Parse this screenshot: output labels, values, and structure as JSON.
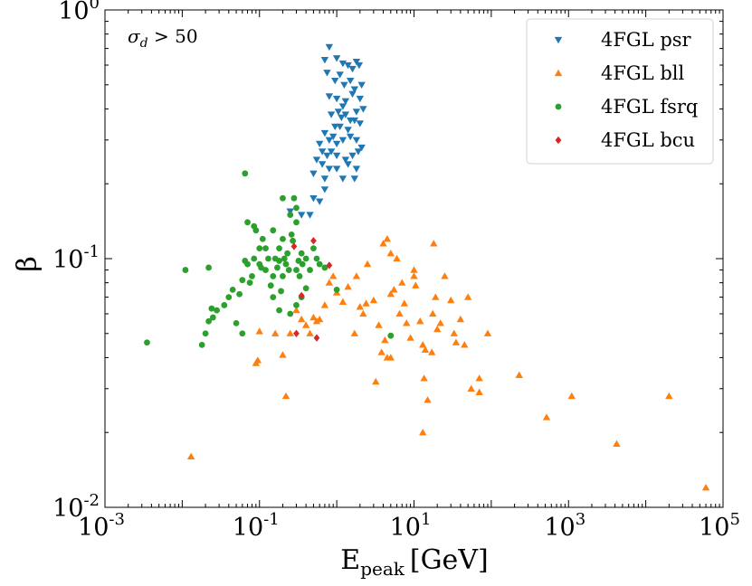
{
  "chart_data": {
    "type": "scatter",
    "title": "",
    "xlabel": "E_peak [GeV]",
    "xlabel_main": "E",
    "xlabel_sub": "peak",
    "xlabel_unit": "[GeV]",
    "ylabel": "β",
    "xscale": "log",
    "yscale": "log",
    "xlim": [
      0.001,
      100000
    ],
    "ylim": [
      0.01,
      1
    ],
    "legend_position": "top-right",
    "annotation": {
      "text": "σd > 50",
      "symbol": "σ",
      "sub": "d",
      "rest": " > 50"
    },
    "x_ticks": [
      {
        "value": 0.001,
        "base": "10",
        "exp": "-3"
      },
      {
        "value": 0.1,
        "base": "10",
        "exp": "-1"
      },
      {
        "value": 10,
        "base": "10",
        "exp": "1"
      },
      {
        "value": 1000,
        "base": "10",
        "exp": "3"
      },
      {
        "value": 100000,
        "base": "10",
        "exp": "5"
      }
    ],
    "y_ticks": [
      {
        "value": 0.01,
        "base": "10",
        "exp": "-2"
      },
      {
        "value": 0.1,
        "base": "10",
        "exp": "-1"
      },
      {
        "value": 1,
        "base": "10",
        "exp": "0"
      }
    ],
    "series": [
      {
        "name": "4FGL psr",
        "color": "#1f77b4",
        "marker": "triangle-down",
        "points": [
          [
            0.8,
            0.71
          ],
          [
            0.7,
            0.63
          ],
          [
            1.0,
            0.64
          ],
          [
            1.2,
            0.61
          ],
          [
            1.1,
            0.55
          ],
          [
            1.4,
            0.6
          ],
          [
            1.6,
            0.58
          ],
          [
            1.8,
            0.62
          ],
          [
            1.95,
            0.6
          ],
          [
            0.75,
            0.56
          ],
          [
            0.95,
            0.52
          ],
          [
            1.25,
            0.5
          ],
          [
            1.5,
            0.52
          ],
          [
            1.7,
            0.48
          ],
          [
            2.1,
            0.5
          ],
          [
            0.8,
            0.45
          ],
          [
            1.0,
            0.44
          ],
          [
            1.3,
            0.43
          ],
          [
            1.6,
            0.46
          ],
          [
            2.0,
            0.44
          ],
          [
            1.2,
            0.41
          ],
          [
            1.05,
            0.39
          ],
          [
            1.15,
            0.37
          ],
          [
            1.3,
            0.38
          ],
          [
            1.5,
            0.36
          ],
          [
            1.8,
            0.39
          ],
          [
            2.2,
            0.4
          ],
          [
            0.85,
            0.38
          ],
          [
            0.95,
            0.34
          ],
          [
            1.1,
            0.34
          ],
          [
            1.4,
            0.33
          ],
          [
            1.7,
            0.36
          ],
          [
            2.0,
            0.35
          ],
          [
            0.7,
            0.32
          ],
          [
            0.8,
            0.3
          ],
          [
            0.9,
            0.31
          ],
          [
            1.0,
            0.29
          ],
          [
            1.2,
            0.3
          ],
          [
            1.5,
            0.31
          ],
          [
            1.8,
            0.3
          ],
          [
            2.1,
            0.28
          ],
          [
            0.6,
            0.29
          ],
          [
            0.65,
            0.27
          ],
          [
            0.75,
            0.26
          ],
          [
            0.85,
            0.27
          ],
          [
            1.0,
            0.26
          ],
          [
            1.3,
            0.25
          ],
          [
            1.6,
            0.26
          ],
          [
            1.9,
            0.27
          ],
          [
            0.55,
            0.25
          ],
          [
            0.65,
            0.24
          ],
          [
            0.8,
            0.23
          ],
          [
            1.0,
            0.23
          ],
          [
            1.4,
            0.24
          ],
          [
            1.8,
            0.23
          ],
          [
            0.5,
            0.22
          ],
          [
            0.7,
            0.21
          ],
          [
            1.2,
            0.21
          ],
          [
            1.7,
            0.21
          ],
          [
            0.7,
            0.19
          ],
          [
            0.5,
            0.175
          ],
          [
            0.6,
            0.17
          ],
          [
            0.45,
            0.15
          ],
          [
            0.35,
            0.15
          ],
          [
            0.25,
            0.155
          ]
        ]
      },
      {
        "name": "4FGL bll",
        "color": "#ff7f0e",
        "marker": "triangle-up",
        "points": [
          [
            0.013,
            0.016
          ],
          [
            0.09,
            0.038
          ],
          [
            0.095,
            0.039
          ],
          [
            0.1,
            0.051
          ],
          [
            0.16,
            0.05
          ],
          [
            0.2,
            0.041
          ],
          [
            0.22,
            0.028
          ],
          [
            0.25,
            0.05
          ],
          [
            0.3,
            0.062
          ],
          [
            0.35,
            0.057
          ],
          [
            0.4,
            0.054
          ],
          [
            0.45,
            0.05
          ],
          [
            0.5,
            0.058
          ],
          [
            0.55,
            0.056
          ],
          [
            0.6,
            0.057
          ],
          [
            0.7,
            0.065
          ],
          [
            0.8,
            0.08
          ],
          [
            0.9,
            0.085
          ],
          [
            1.0,
            0.073
          ],
          [
            1.2,
            0.067
          ],
          [
            1.4,
            0.077
          ],
          [
            1.7,
            0.05
          ],
          [
            2.0,
            0.064
          ],
          [
            2.2,
            0.06
          ],
          [
            2.4,
            0.066
          ],
          [
            1.8,
            0.085
          ],
          [
            2.5,
            0.095
          ],
          [
            3.0,
            0.068
          ],
          [
            3.5,
            0.054
          ],
          [
            3.2,
            0.032
          ],
          [
            3.8,
            0.042
          ],
          [
            4.2,
            0.047
          ],
          [
            4.5,
            0.04
          ],
          [
            5.0,
            0.04
          ],
          [
            4.0,
            0.115
          ],
          [
            4.5,
            0.12
          ],
          [
            5.0,
            0.105
          ],
          [
            6.0,
            0.1
          ],
          [
            5.5,
            0.075
          ],
          [
            7.0,
            0.08
          ],
          [
            5.0,
            0.072
          ],
          [
            6.5,
            0.06
          ],
          [
            7.5,
            0.066
          ],
          [
            8.0,
            0.055
          ],
          [
            9.0,
            0.048
          ],
          [
            10.0,
            0.09
          ],
          [
            10.0,
            0.085
          ],
          [
            10.5,
            0.078
          ],
          [
            12.0,
            0.056
          ],
          [
            13.0,
            0.045
          ],
          [
            14.0,
            0.043
          ],
          [
            13.5,
            0.033
          ],
          [
            13.0,
            0.02
          ],
          [
            15.0,
            0.027
          ],
          [
            17.0,
            0.042
          ],
          [
            18.0,
            0.115
          ],
          [
            19.0,
            0.07
          ],
          [
            17.5,
            0.06
          ],
          [
            20.0,
            0.052
          ],
          [
            22.0,
            0.055
          ],
          [
            25.0,
            0.085
          ],
          [
            30.0,
            0.068
          ],
          [
            33.0,
            0.05
          ],
          [
            35.0,
            0.046
          ],
          [
            40.0,
            0.057
          ],
          [
            45.0,
            0.045
          ],
          [
            50.0,
            0.07
          ],
          [
            55.0,
            0.03
          ],
          [
            70.0,
            0.029
          ],
          [
            70.0,
            0.033
          ],
          [
            90.0,
            0.05
          ],
          [
            230.0,
            0.034
          ],
          [
            520.0,
            0.023
          ],
          [
            1100.0,
            0.028
          ],
          [
            4200.0,
            0.018
          ],
          [
            20000.0,
            0.028
          ],
          [
            60000.0,
            0.012
          ]
        ]
      },
      {
        "name": "4FGL fsrq",
        "color": "#2ca02c",
        "marker": "circle",
        "points": [
          [
            0.0035,
            0.046
          ],
          [
            0.011,
            0.09
          ],
          [
            0.018,
            0.045
          ],
          [
            0.02,
            0.05
          ],
          [
            0.022,
            0.056
          ],
          [
            0.024,
            0.063
          ],
          [
            0.025,
            0.058
          ],
          [
            0.028,
            0.062
          ],
          [
            0.022,
            0.092
          ],
          [
            0.035,
            0.065
          ],
          [
            0.04,
            0.07
          ],
          [
            0.045,
            0.075
          ],
          [
            0.05,
            0.055
          ],
          [
            0.055,
            0.072
          ],
          [
            0.06,
            0.05
          ],
          [
            0.06,
            0.082
          ],
          [
            0.065,
            0.098
          ],
          [
            0.07,
            0.095
          ],
          [
            0.065,
            0.22
          ],
          [
            0.07,
            0.14
          ],
          [
            0.075,
            0.08
          ],
          [
            0.08,
            0.085
          ],
          [
            0.085,
            0.1
          ],
          [
            0.085,
            0.135
          ],
          [
            0.09,
            0.13
          ],
          [
            0.1,
            0.11
          ],
          [
            0.1,
            0.095
          ],
          [
            0.105,
            0.092
          ],
          [
            0.11,
            0.12
          ],
          [
            0.12,
            0.11
          ],
          [
            0.12,
            0.09
          ],
          [
            0.13,
            0.1
          ],
          [
            0.14,
            0.078
          ],
          [
            0.15,
            0.085
          ],
          [
            0.15,
            0.13
          ],
          [
            0.16,
            0.1
          ],
          [
            0.17,
            0.092
          ],
          [
            0.18,
            0.11
          ],
          [
            0.18,
            0.098
          ],
          [
            0.19,
            0.074
          ],
          [
            0.2,
            0.085
          ],
          [
            0.2,
            0.12
          ],
          [
            0.2,
            0.175
          ],
          [
            0.21,
            0.1
          ],
          [
            0.22,
            0.095
          ],
          [
            0.23,
            0.105
          ],
          [
            0.24,
            0.09
          ],
          [
            0.25,
            0.15
          ],
          [
            0.26,
            0.125
          ],
          [
            0.27,
            0.118
          ],
          [
            0.28,
            0.175
          ],
          [
            0.3,
            0.16
          ],
          [
            0.3,
            0.14
          ],
          [
            0.32,
            0.098
          ],
          [
            0.33,
            0.085
          ],
          [
            0.35,
            0.105
          ],
          [
            0.36,
            0.095
          ],
          [
            0.4,
            0.1
          ],
          [
            0.45,
            0.09
          ],
          [
            0.5,
            0.11
          ],
          [
            0.55,
            0.1
          ],
          [
            0.6,
            0.095
          ],
          [
            0.7,
            0.092
          ],
          [
            0.25,
            0.06
          ],
          [
            0.3,
            0.065
          ],
          [
            0.35,
            0.07
          ],
          [
            0.4,
            0.076
          ],
          [
            0.3,
            0.09
          ],
          [
            1.0,
            0.075
          ],
          [
            5.0,
            0.049
          ],
          [
            0.15,
            0.07
          ],
          [
            0.18,
            0.062
          ]
        ]
      },
      {
        "name": "4FGL bcu",
        "color": "#d62728",
        "marker": "diamond",
        "points": [
          [
            0.5,
            0.118
          ],
          [
            0.28,
            0.112
          ],
          [
            0.8,
            0.094
          ],
          [
            0.35,
            0.071
          ],
          [
            0.3,
            0.05
          ],
          [
            0.55,
            0.048
          ]
        ]
      }
    ]
  }
}
